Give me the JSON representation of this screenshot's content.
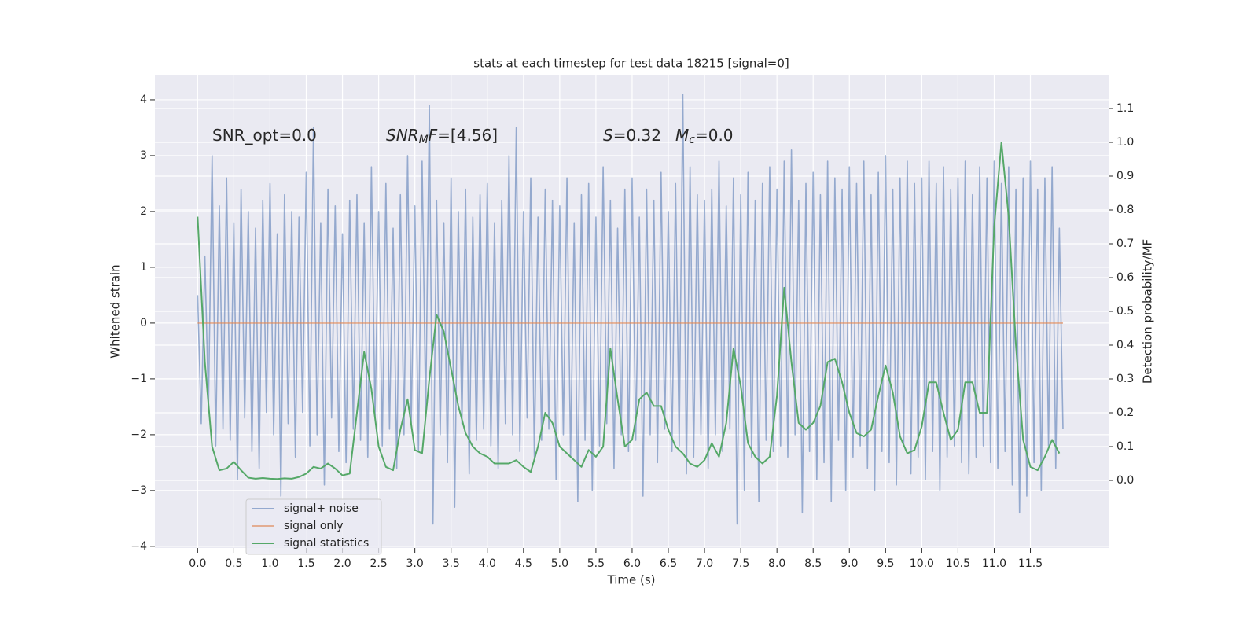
{
  "chart_data": {
    "type": "line",
    "title": "stats at each timestep for test data 18215 [signal=0]",
    "xlabel": "Time (s)",
    "ylabel": "Whitened strain",
    "y2label": "Detection probability/MF",
    "xlim": [
      -0.59,
      12.58
    ],
    "ylim": [
      -4.03,
      4.45
    ],
    "y2lim": [
      -0.2,
      1.2
    ],
    "xticks": [
      {
        "value": 0,
        "label": "0.0"
      },
      0.5,
      {
        "value": 1,
        "label": "1.0"
      },
      1.5,
      {
        "value": 2,
        "label": "2.0"
      },
      2.5,
      {
        "value": 3,
        "label": "3.0"
      },
      3.5,
      {
        "value": 4,
        "label": "4.0"
      },
      4.5,
      {
        "value": 5,
        "label": "5.0"
      },
      5.5,
      {
        "value": 6,
        "label": "6.0"
      },
      6.5,
      {
        "value": 7,
        "label": "7.0"
      },
      7.5,
      {
        "value": 8,
        "label": "8.0"
      },
      8.5,
      {
        "value": 9,
        "label": "9.0"
      },
      9.5,
      {
        "value": 10,
        "label": "10.0"
      },
      10.5,
      {
        "value": 11,
        "label": "11.0"
      },
      11.5
    ],
    "yticks": [
      {
        "value": -4,
        "label": "−4"
      },
      {
        "value": -3,
        "label": "−3"
      },
      {
        "value": -2,
        "label": "−2"
      },
      {
        "value": -1,
        "label": "−1"
      },
      0,
      1,
      2,
      3,
      4
    ],
    "y2ticks": [
      {
        "value": 0,
        "label": "0.0"
      },
      0.1,
      0.2,
      0.3,
      0.4,
      0.5,
      0.6,
      0.7,
      0.8,
      0.9,
      {
        "value": 1,
        "label": "1.0"
      },
      1.1
    ],
    "grid": true,
    "legend": "lower left",
    "annotations": [
      [
        {
          "text": "SNR_opt=0.0",
          "style": "normal"
        }
      ],
      [
        {
          "text": "SNR",
          "style": "italic"
        },
        {
          "text": "M",
          "style": "sub"
        },
        {
          "text": "F",
          "style": "italic"
        },
        {
          "text": "=[4.56]",
          "style": "normal"
        }
      ],
      [
        {
          "text": "S",
          "style": "italic"
        },
        {
          "text": "=0.32",
          "style": "normal"
        }
      ],
      [
        {
          "text": "M",
          "style": "italic"
        },
        {
          "text": "c",
          "style": "sub"
        },
        {
          "text": "=0.0",
          "style": "normal"
        }
      ]
    ],
    "series": [
      {
        "name": "signal+ noise",
        "color": "#4c72b0",
        "alpha": 0.55,
        "x": [
          0,
          0.05,
          0.1,
          0.15,
          0.2,
          0.25,
          0.3,
          0.35,
          0.4,
          0.45,
          0.5,
          0.55,
          0.6,
          0.65,
          0.7,
          0.75,
          0.8,
          0.85,
          0.9,
          0.95,
          1,
          1.05,
          1.1,
          1.15,
          1.2,
          1.25,
          1.3,
          1.35,
          1.4,
          1.45,
          1.5,
          1.55,
          1.6,
          1.65,
          1.7,
          1.75,
          1.8,
          1.85,
          1.9,
          1.95,
          2,
          2.05,
          2.1,
          2.15,
          2.2,
          2.25,
          2.3,
          2.35,
          2.4,
          2.45,
          2.5,
          2.55,
          2.6,
          2.65,
          2.7,
          2.75,
          2.8,
          2.85,
          2.9,
          2.95,
          3,
          3.05,
          3.1,
          3.15,
          3.2,
          3.25,
          3.3,
          3.35,
          3.4,
          3.45,
          3.5,
          3.55,
          3.6,
          3.65,
          3.7,
          3.75,
          3.8,
          3.85,
          3.9,
          3.95,
          4,
          4.05,
          4.1,
          4.15,
          4.2,
          4.25,
          4.3,
          4.35,
          4.4,
          4.45,
          4.5,
          4.55,
          4.6,
          4.65,
          4.7,
          4.75,
          4.8,
          4.85,
          4.9,
          4.95,
          5,
          5.05,
          5.1,
          5.15,
          5.2,
          5.25,
          5.3,
          5.35,
          5.4,
          5.45,
          5.5,
          5.55,
          5.6,
          5.65,
          5.7,
          5.75,
          5.8,
          5.85,
          5.9,
          5.95,
          6,
          6.05,
          6.1,
          6.15,
          6.2,
          6.25,
          6.3,
          6.35,
          6.4,
          6.45,
          6.5,
          6.55,
          6.6,
          6.65,
          6.7,
          6.75,
          6.8,
          6.85,
          6.9,
          6.95,
          7,
          7.05,
          7.1,
          7.15,
          7.2,
          7.25,
          7.3,
          7.35,
          7.4,
          7.45,
          7.5,
          7.55,
          7.6,
          7.65,
          7.7,
          7.75,
          7.8,
          7.85,
          7.9,
          7.95,
          8,
          8.05,
          8.1,
          8.15,
          8.2,
          8.25,
          8.3,
          8.35,
          8.4,
          8.45,
          8.5,
          8.55,
          8.6,
          8.65,
          8.7,
          8.75,
          8.8,
          8.85,
          8.9,
          8.95,
          9,
          9.05,
          9.1,
          9.15,
          9.2,
          9.25,
          9.3,
          9.35,
          9.4,
          9.45,
          9.5,
          9.55,
          9.6,
          9.65,
          9.7,
          9.75,
          9.8,
          9.85,
          9.9,
          9.95,
          10,
          10.05,
          10.1,
          10.15,
          10.2,
          10.25,
          10.3,
          10.35,
          10.4,
          10.45,
          10.5,
          10.55,
          10.6,
          10.65,
          10.7,
          10.75,
          10.8,
          10.85,
          10.9,
          10.95,
          11,
          11.05,
          11.1,
          11.15,
          11.2,
          11.25,
          11.3,
          11.35,
          11.4,
          11.45,
          11.5,
          11.55,
          11.6,
          11.65,
          11.7,
          11.75,
          11.8,
          11.85,
          11.9,
          11.95
        ],
        "values": [
          0.5,
          -1.8,
          1.2,
          -1.5,
          3.0,
          -2.2,
          2.1,
          -1.9,
          2.6,
          -2.1,
          1.8,
          -2.8,
          2.4,
          -1.7,
          2.0,
          -2.3,
          1.7,
          -2.6,
          2.2,
          -1.6,
          2.5,
          -2.0,
          1.6,
          -3.1,
          2.3,
          -1.8,
          2.0,
          -2.4,
          1.9,
          -1.6,
          2.7,
          -2.2,
          3.5,
          -2.0,
          1.8,
          -2.9,
          2.4,
          -1.7,
          2.1,
          -2.3,
          1.6,
          -2.5,
          2.2,
          -1.9,
          2.3,
          -2.1,
          1.8,
          -2.4,
          2.8,
          -1.7,
          2.0,
          -2.2,
          2.5,
          -1.9,
          1.7,
          -2.6,
          2.3,
          -2.0,
          3.0,
          -1.8,
          2.1,
          -2.3,
          2.9,
          -1.6,
          3.9,
          -3.6,
          2.2,
          -2.0,
          1.8,
          -2.5,
          2.6,
          -3.3,
          2.0,
          -1.8,
          2.4,
          -2.7,
          1.9,
          -2.1,
          2.3,
          -1.9,
          2.5,
          -2.2,
          1.8,
          -2.6,
          2.2,
          -1.8,
          3.0,
          -2.0,
          3.5,
          -2.3,
          2.0,
          -1.7,
          2.6,
          -2.4,
          1.9,
          -2.1,
          2.4,
          -1.9,
          2.2,
          -2.8,
          2.1,
          -2.0,
          2.6,
          -2.4,
          1.8,
          -3.2,
          2.3,
          -2.1,
          2.5,
          -3.0,
          1.9,
          -2.2,
          2.8,
          -1.8,
          2.2,
          -2.6,
          1.7,
          -2.0,
          2.4,
          -2.3,
          2.6,
          -2.1,
          1.9,
          -3.1,
          2.4,
          -2.0,
          2.2,
          -2.5,
          2.7,
          -1.9,
          2.0,
          -2.3,
          2.5,
          -2.2,
          4.1,
          -2.7,
          2.8,
          -2.4,
          2.3,
          -2.0,
          2.2,
          -2.6,
          2.4,
          -2.0,
          2.9,
          -2.3,
          2.1,
          -1.9,
          2.6,
          -3.6,
          2.3,
          -3.0,
          2.7,
          -2.4,
          2.2,
          -3.2,
          2.5,
          -2.1,
          2.8,
          -2.3,
          2.4,
          -2.2,
          2.9,
          -2.4,
          3.1,
          -2.0,
          2.2,
          -3.4,
          2.5,
          -2.3,
          2.7,
          -2.8,
          2.3,
          -2.5,
          2.9,
          -3.2,
          2.6,
          -2.1,
          2.4,
          -3.0,
          2.8,
          -2.4,
          2.5,
          -2.2,
          2.9,
          -2.6,
          2.3,
          -3.0,
          2.7,
          -2.3,
          3.0,
          -2.5,
          2.4,
          -2.9,
          2.6,
          -2.2,
          2.9,
          -2.7,
          2.5,
          -2.4,
          2.6,
          -2.8,
          2.9,
          -2.3,
          2.5,
          -3.0,
          2.8,
          -2.4,
          2.4,
          -2.2,
          2.6,
          -2.5,
          2.9,
          -2.7,
          2.3,
          -2.4,
          2.8,
          -2.2,
          2.6,
          -2.5,
          2.9,
          -2.6,
          2.5,
          -2.3,
          2.8,
          -2.9,
          2.4,
          -3.4,
          2.6,
          -3.1,
          2.9,
          -2.5,
          2.4,
          -3.0,
          2.6,
          -2.2,
          2.8,
          -2.6,
          1.7,
          -1.9
        ]
      },
      {
        "name": "signal only",
        "color": "#dd8452",
        "alpha": 0.6,
        "x": [
          0,
          11.95
        ],
        "values": [
          0,
          0
        ]
      },
      {
        "name": "signal statistics",
        "color": "#55a868",
        "axis": "y2",
        "x": [
          0,
          0.1,
          0.2,
          0.3,
          0.4,
          0.5,
          0.6,
          0.7,
          0.8,
          0.9,
          1,
          1.1,
          1.2,
          1.3,
          1.4,
          1.5,
          1.6,
          1.7,
          1.8,
          1.9,
          2,
          2.1,
          2.2,
          2.3,
          2.4,
          2.5,
          2.6,
          2.7,
          2.8,
          2.9,
          3,
          3.1,
          3.2,
          3.3,
          3.4,
          3.5,
          3.6,
          3.7,
          3.8,
          3.9,
          4,
          4.1,
          4.2,
          4.3,
          4.4,
          4.5,
          4.6,
          4.7,
          4.8,
          4.9,
          5,
          5.1,
          5.2,
          5.3,
          5.4,
          5.5,
          5.6,
          5.7,
          5.8,
          5.9,
          6,
          6.1,
          6.2,
          6.3,
          6.4,
          6.5,
          6.6,
          6.7,
          6.8,
          6.9,
          7,
          7.1,
          7.2,
          7.3,
          7.4,
          7.5,
          7.6,
          7.7,
          7.8,
          7.9,
          8,
          8.1,
          8.2,
          8.3,
          8.4,
          8.5,
          8.6,
          8.7,
          8.8,
          8.9,
          9,
          9.1,
          9.2,
          9.3,
          9.4,
          9.5,
          9.6,
          9.7,
          9.8,
          9.9,
          10,
          10.1,
          10.2,
          10.3,
          10.4,
          10.5,
          10.6,
          10.7,
          10.8,
          10.9,
          11,
          11.1,
          11.2,
          11.3,
          11.4,
          11.5,
          11.6,
          11.7,
          11.8,
          11.9
        ],
        "values": [
          0.78,
          0.35,
          0.1,
          0.03,
          0.035,
          0.055,
          0.03,
          0.008,
          0.005,
          0.007,
          0.005,
          0.004,
          0.006,
          0.005,
          0.01,
          0.02,
          0.04,
          0.035,
          0.05,
          0.035,
          0.015,
          0.02,
          0.2,
          0.38,
          0.27,
          0.1,
          0.04,
          0.03,
          0.15,
          0.24,
          0.09,
          0.08,
          0.3,
          0.49,
          0.44,
          0.33,
          0.22,
          0.14,
          0.1,
          0.08,
          0.07,
          0.05,
          0.05,
          0.05,
          0.06,
          0.04,
          0.025,
          0.1,
          0.2,
          0.17,
          0.1,
          0.08,
          0.06,
          0.04,
          0.09,
          0.07,
          0.1,
          0.39,
          0.24,
          0.1,
          0.12,
          0.24,
          0.26,
          0.22,
          0.22,
          0.15,
          0.1,
          0.08,
          0.05,
          0.04,
          0.06,
          0.11,
          0.07,
          0.17,
          0.39,
          0.28,
          0.11,
          0.07,
          0.05,
          0.07,
          0.25,
          0.57,
          0.35,
          0.17,
          0.15,
          0.17,
          0.22,
          0.35,
          0.36,
          0.29,
          0.2,
          0.14,
          0.13,
          0.15,
          0.25,
          0.34,
          0.26,
          0.13,
          0.08,
          0.09,
          0.16,
          0.29,
          0.29,
          0.2,
          0.12,
          0.15,
          0.29,
          0.29,
          0.2,
          0.2,
          0.75,
          1.0,
          0.78,
          0.4,
          0.12,
          0.04,
          0.03,
          0.07,
          0.12,
          0.08
        ]
      }
    ]
  }
}
